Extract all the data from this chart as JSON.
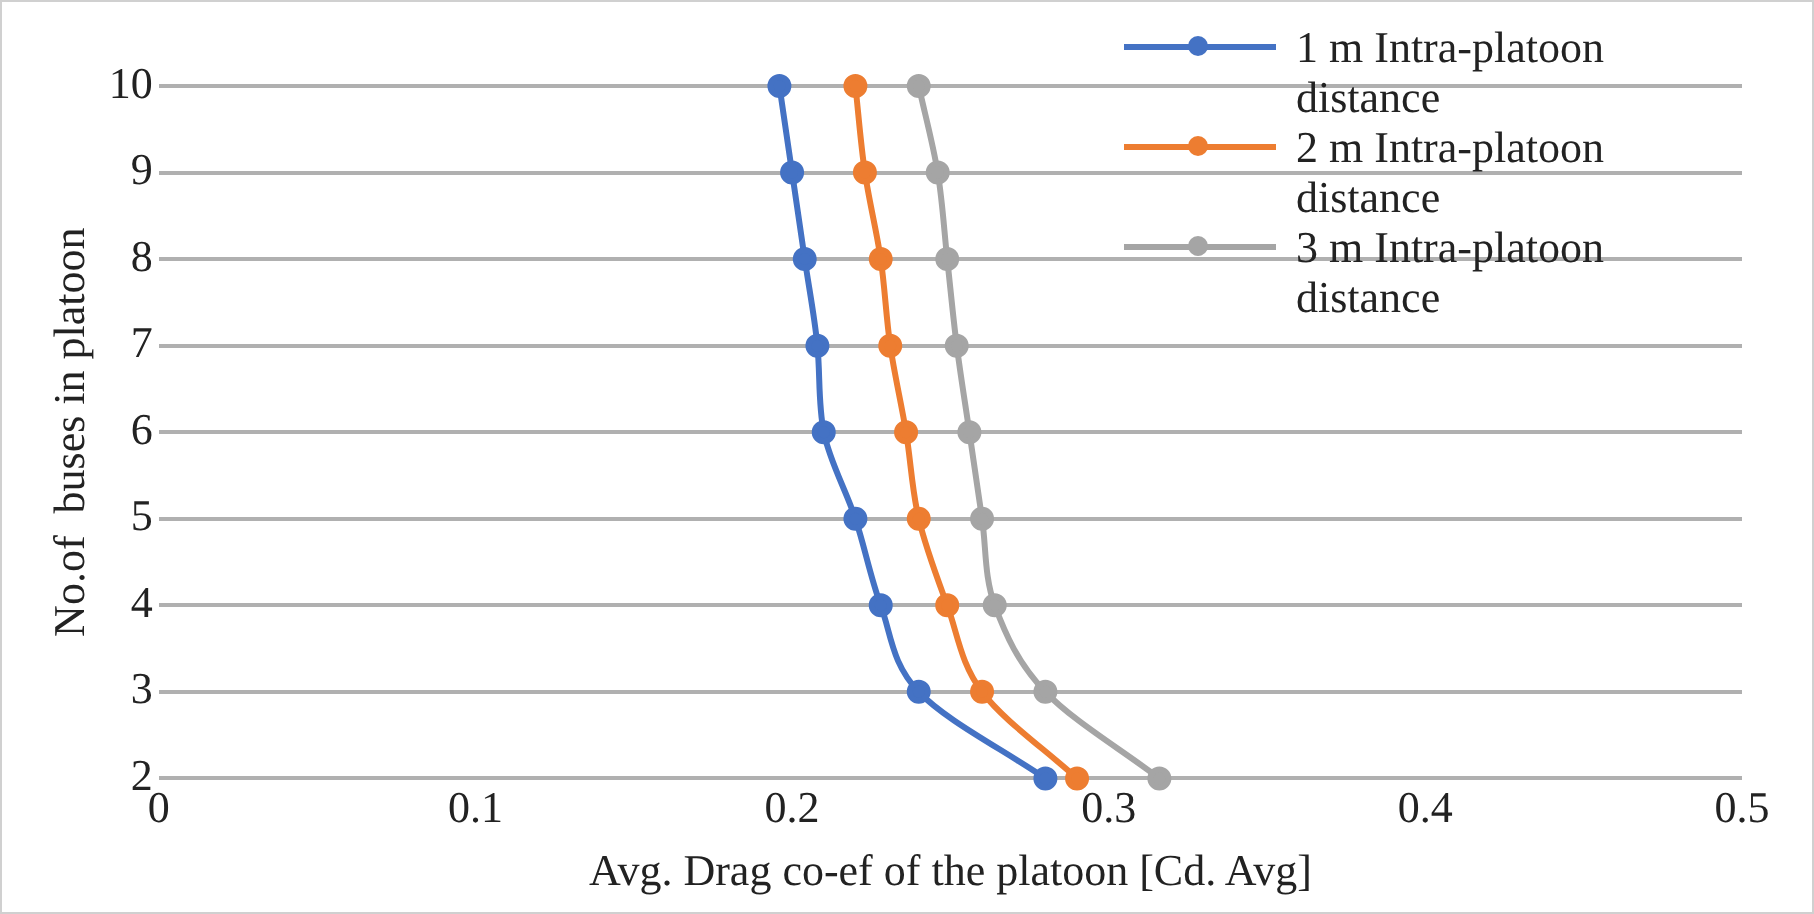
{
  "chart_data": {
    "type": "line",
    "orientation": "horizontal",
    "xlabel": "Avg. Drag co-ef of the platoon [Cd. Avg]",
    "ylabel": "No.of  buses in platoon",
    "categories": [
      "10",
      "9",
      "8",
      "7",
      "6",
      "5",
      "4",
      "3",
      "2"
    ],
    "xlim": [
      0,
      0.5
    ],
    "xticks": [
      0,
      0.1,
      0.2,
      0.3,
      0.4,
      0.5
    ],
    "grid": "y",
    "legend": "top right",
    "marker": "circle",
    "series": [
      {
        "name": "1 m Intra-platoon distance",
        "color": "#4472c4",
        "values": [
          0.196,
          0.2,
          0.204,
          0.208,
          0.21,
          0.22,
          0.228,
          0.24,
          0.28
        ]
      },
      {
        "name": "2 m Intra-platoon distance",
        "color": "#ed7d31",
        "values": [
          0.22,
          0.223,
          0.228,
          0.231,
          0.236,
          0.24,
          0.249,
          0.26,
          0.29
        ]
      },
      {
        "name": "3 m Intra-platoon distance",
        "color": "#a5a5a5",
        "values": [
          0.24,
          0.246,
          0.249,
          0.252,
          0.256,
          0.26,
          0.264,
          0.28,
          0.316
        ]
      }
    ]
  }
}
